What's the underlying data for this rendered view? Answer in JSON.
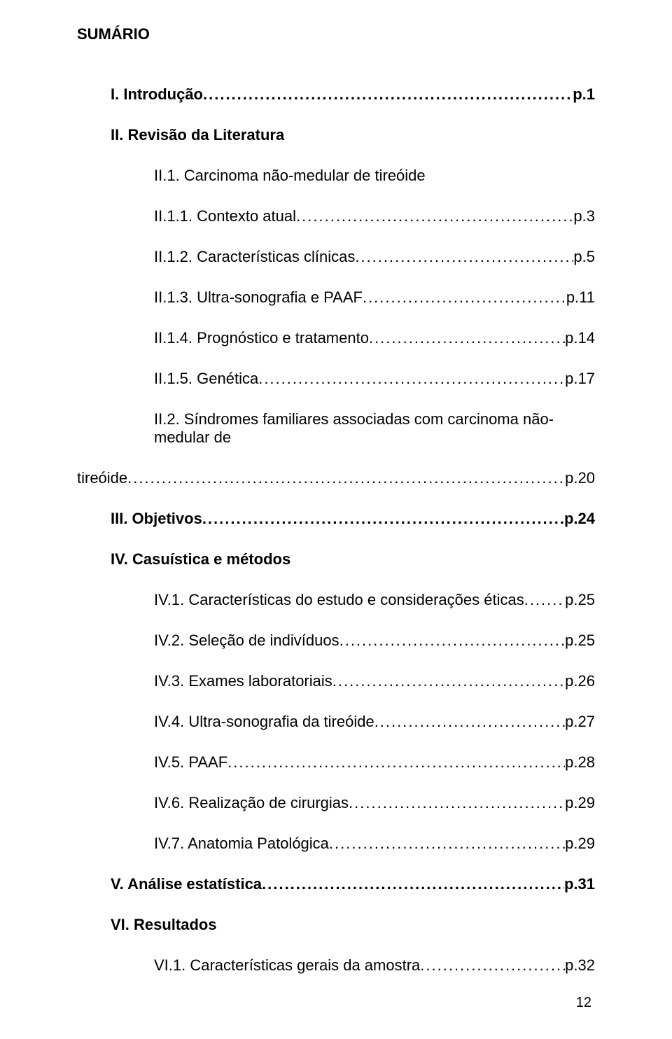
{
  "title": "SUMÁRIO",
  "page_number": "12",
  "font_family": "Arial",
  "text_color": "#000000",
  "background_color": "#ffffff",
  "entries": [
    {
      "label": "I. Introdução",
      "page": "p.1",
      "indent": 1,
      "bold": true,
      "dots": true
    },
    {
      "label": "II. Revisão da Literatura",
      "page": "",
      "indent": 1,
      "bold": true,
      "dots": false
    },
    {
      "label": "II.1. Carcinoma não-medular de tireóide",
      "page": "",
      "indent": 2,
      "bold": false,
      "dots": false
    },
    {
      "label": "II.1.1. Contexto atual",
      "page": "p.3",
      "indent": 2,
      "bold": false,
      "dots": true
    },
    {
      "label": "II.1.2. Características clínicas",
      "page": "p.5",
      "indent": 2,
      "bold": false,
      "dots": true
    },
    {
      "label": "II.1.3. Ultra-sonografia e PAAF",
      "page": "p.11",
      "indent": 2,
      "bold": false,
      "dots": true
    },
    {
      "label": "II.1.4. Prognóstico e tratamento",
      "page": "p.14",
      "indent": 2,
      "bold": false,
      "dots": true
    },
    {
      "label": "II.1.5. Genética",
      "page": "p.17",
      "indent": 2,
      "bold": false,
      "dots": true
    },
    {
      "label": "II.2. Síndromes familiares associadas com carcinoma não-medular de",
      "page": "",
      "indent": 2,
      "bold": false,
      "dots": false
    },
    {
      "label": "tireóide",
      "page": "p.20",
      "indent": 0,
      "bold": false,
      "dots": true
    },
    {
      "label": "III. Objetivos",
      "page": "p.24",
      "indent": 1,
      "bold": true,
      "dots": true
    },
    {
      "label": "IV. Casuística e métodos",
      "page": "",
      "indent": 1,
      "bold": true,
      "dots": false
    },
    {
      "label": "IV.1. Características do estudo e considerações éticas",
      "page": "p.25",
      "indent": 2,
      "bold": false,
      "dots": true
    },
    {
      "label": "IV.2. Seleção de indivíduos",
      "page": "p.25",
      "indent": 2,
      "bold": false,
      "dots": true
    },
    {
      "label": "IV.3. Exames laboratoriais",
      "page": "p.26",
      "indent": 2,
      "bold": false,
      "dots": true
    },
    {
      "label": "IV.4. Ultra-sonografia da tireóide",
      "page": "p.27",
      "indent": 2,
      "bold": false,
      "dots": true
    },
    {
      "label": "IV.5. PAAF",
      "page": "p.28",
      "indent": 2,
      "bold": false,
      "dots": true
    },
    {
      "label": "IV.6. Realização de cirurgias",
      "page": "p.29",
      "indent": 2,
      "bold": false,
      "dots": true
    },
    {
      "label": "IV.7. Anatomia Patológica",
      "page": "p.29",
      "indent": 2,
      "bold": false,
      "dots": true
    },
    {
      "label": "V. Análise estatística",
      "page": "p.31",
      "indent": 1,
      "bold": true,
      "dots": true
    },
    {
      "label": "VI. Resultados",
      "page": "",
      "indent": 1,
      "bold": true,
      "dots": false
    },
    {
      "label": "VI.1. Características gerais da amostra",
      "page": "p.32",
      "indent": 2,
      "bold": false,
      "dots": true
    }
  ]
}
